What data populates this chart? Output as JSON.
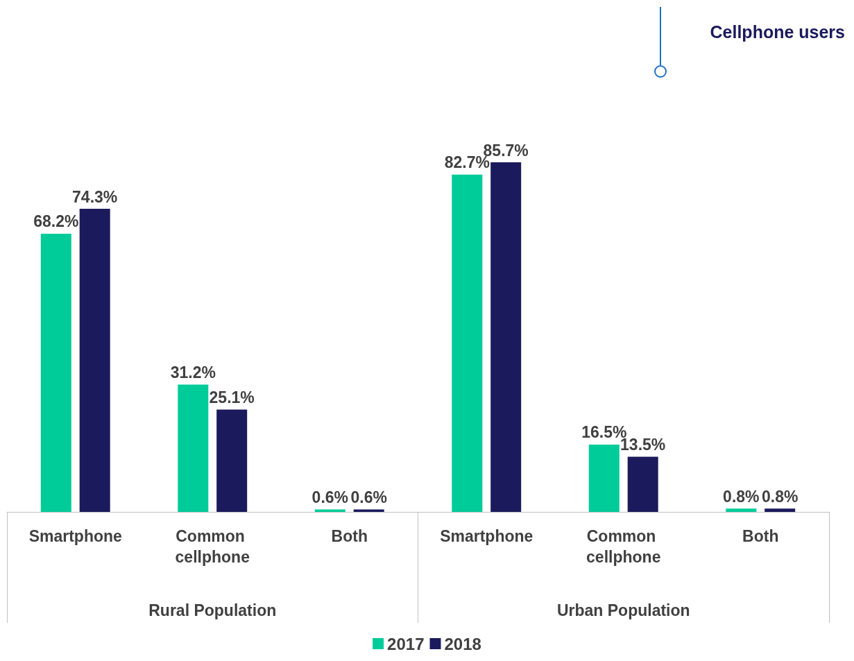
{
  "chart_data": {
    "type": "bar",
    "title": "Cellphone users",
    "categories": [
      "Smartphone",
      "Common cellphone",
      "Both",
      "Smartphone",
      "Common cellphone",
      "Both"
    ],
    "series": [
      {
        "name": "2017",
        "color": "#00cc99",
        "values": [
          68.2,
          31.2,
          0.6,
          82.7,
          16.5,
          0.8
        ],
        "value_labels": [
          "68.2%",
          "31.2%",
          "0.6%",
          "82.7%",
          "16.5%",
          "0.8%"
        ]
      },
      {
        "name": "2018",
        "color": "#1a1a5c",
        "values": [
          74.3,
          25.1,
          0.6,
          85.7,
          13.5,
          0.8
        ],
        "value_labels": [
          "74.3%",
          "25.1%",
          "0.6%",
          "85.7%",
          "13.5%",
          "0.8%"
        ]
      }
    ],
    "legend": "bottom",
    "annotations": [
      "Rural Population",
      "Urban Population"
    ]
  }
}
